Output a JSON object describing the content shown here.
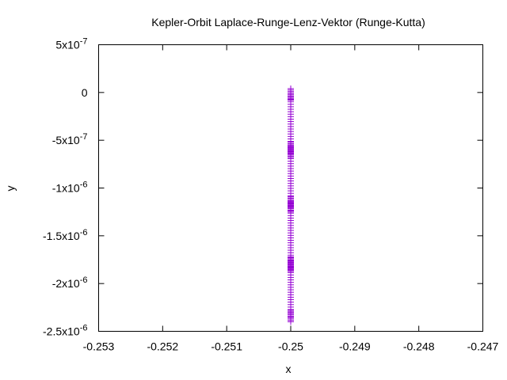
{
  "chart_data": {
    "type": "scatter",
    "title": "Kepler-Orbit Laplace-Runge-Lenz-Vektor (Runge-Kutta)",
    "xlabel": "x",
    "ylabel": "y",
    "xlim": [
      -0.253,
      -0.247
    ],
    "ylim": [
      -2.5e-06,
      5e-07
    ],
    "grid": false,
    "legend": "none",
    "marker": "plus",
    "color": "#9400d3",
    "x_ticks": [
      {
        "value": -0.253,
        "label": "-0.253"
      },
      {
        "value": -0.252,
        "label": "-0.252"
      },
      {
        "value": -0.251,
        "label": "-0.251"
      },
      {
        "value": -0.25,
        "label": "-0.25"
      },
      {
        "value": -0.249,
        "label": "-0.249"
      },
      {
        "value": -0.248,
        "label": "-0.248"
      },
      {
        "value": -0.247,
        "label": "-0.247"
      }
    ],
    "y_ticks": [
      {
        "value": 5e-07,
        "mant": "5x10",
        "exp": "-7"
      },
      {
        "value": 0,
        "mant": "0",
        "exp": ""
      },
      {
        "value": -5e-07,
        "mant": "-5x10",
        "exp": "-7"
      },
      {
        "value": -1e-06,
        "mant": "-1x10",
        "exp": "-6"
      },
      {
        "value": -1.5e-06,
        "mant": "-1.5x10",
        "exp": "-6"
      },
      {
        "value": -2e-06,
        "mant": "-2x10",
        "exp": "-6"
      },
      {
        "value": -2.5e-06,
        "mant": "-2.5x10",
        "exp": "-6"
      }
    ],
    "series": [
      {
        "x_constant": -0.25,
        "y_min": -2.35e-06,
        "y_max": -2e-08,
        "y_dense_clusters": [
          -2e-08,
          -5.8e-07,
          -6.2e-07,
          -1.15e-06,
          -1.2e-06,
          -1.78e-06,
          -1.82e-06,
          -2.34e-06
        ]
      }
    ]
  }
}
